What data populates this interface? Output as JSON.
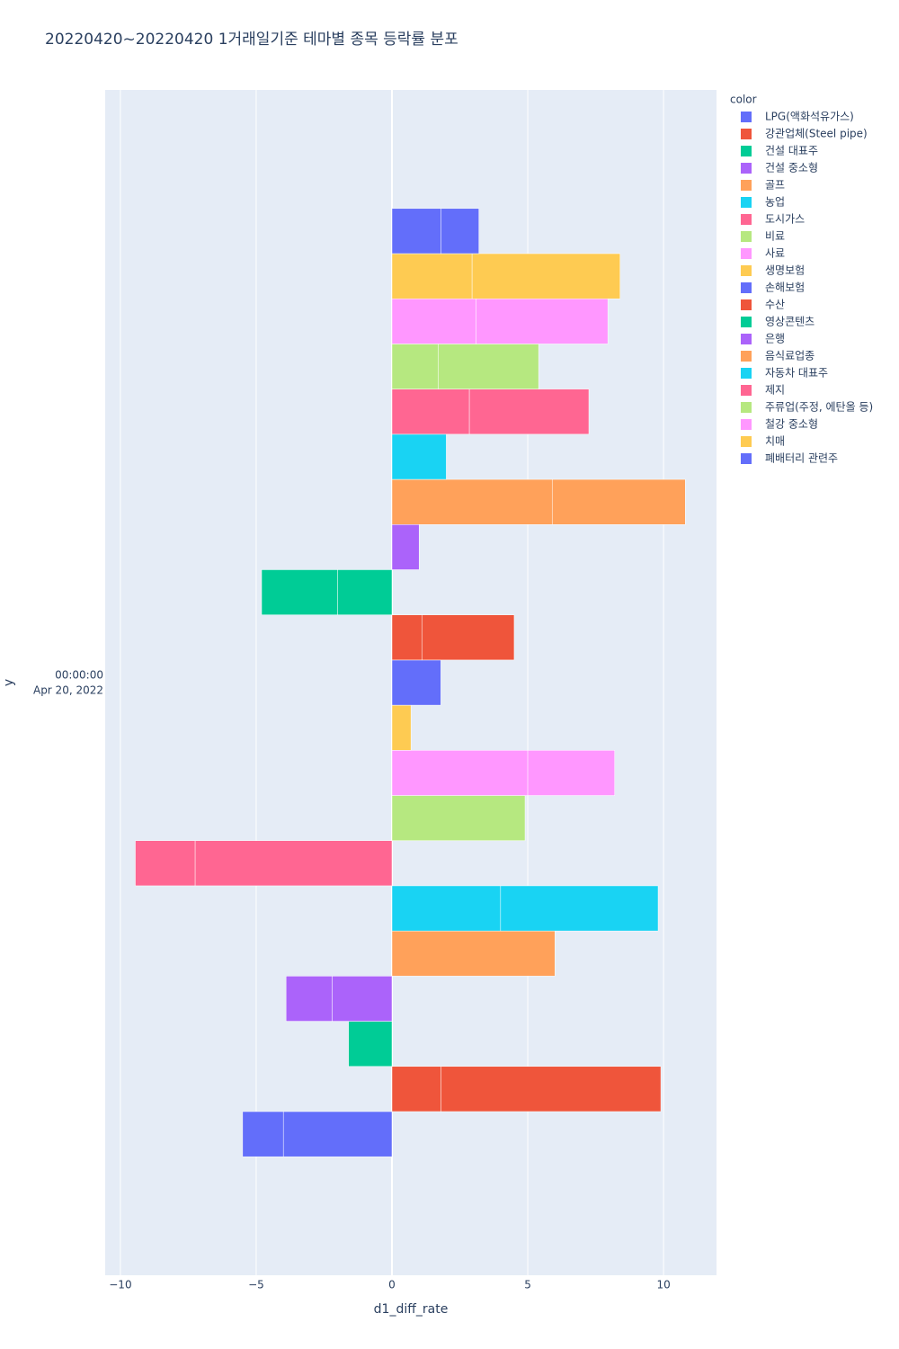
{
  "chart_data": {
    "type": "bar",
    "orientation": "h",
    "barmode": "relative",
    "title": "20220420~20220420 1거래일기준 테마별 종목 등락률 분포",
    "x_label": "d1_diff_rate",
    "y_label": "y",
    "legend_title": "color",
    "y_tick_label": [
      "00:00:00",
      "Apr 20, 2022"
    ],
    "xlim": [
      -10.56,
      11.95
    ],
    "xticks": [
      {
        "value": -10,
        "label": "−10"
      },
      {
        "value": -5,
        "label": "−5"
      },
      0,
      5,
      10
    ],
    "grid": true,
    "legend": "right",
    "series": [
      {
        "name": "LPG(액화석유가스)",
        "color": "#636efa",
        "values": [
          -4.0,
          -1.5
        ]
      },
      {
        "name": "강관업체(Steel pipe)",
        "color": "#EF553B",
        "values": [
          1.8,
          8.1
        ]
      },
      {
        "name": "건설 대표주",
        "color": "#00cc96",
        "values": [
          -1.6
        ]
      },
      {
        "name": "건설 중소형",
        "color": "#ab63fa",
        "values": [
          -2.2,
          -1.7
        ]
      },
      {
        "name": "골프",
        "color": "#FFA15A",
        "values": [
          6.0
        ]
      },
      {
        "name": "농업",
        "color": "#19d3f3",
        "values": [
          4.0,
          5.8
        ]
      },
      {
        "name": "도시가스",
        "color": "#FF6692",
        "values": [
          -7.25,
          -2.2
        ]
      },
      {
        "name": "비료",
        "color": "#B6E880",
        "values": [
          4.9
        ]
      },
      {
        "name": "사료",
        "color": "#FF97FF",
        "values": [
          5.0,
          3.2
        ]
      },
      {
        "name": "생명보험",
        "color": "#FECB52",
        "values": [
          0.7
        ]
      },
      {
        "name": "손해보험",
        "color": "#636efa",
        "values": [
          1.8
        ]
      },
      {
        "name": "수산",
        "color": "#EF553B",
        "values": [
          1.1,
          3.4
        ]
      },
      {
        "name": "영상콘텐츠",
        "color": "#00cc96",
        "values": [
          -2.0,
          -2.8
        ]
      },
      {
        "name": "은행",
        "color": "#ab63fa",
        "values": [
          1.0
        ]
      },
      {
        "name": "음식료업종",
        "color": "#FFA15A",
        "values": [
          5.9,
          4.9
        ]
      },
      {
        "name": "자동차 대표주",
        "color": "#19d3f3",
        "values": [
          2.0
        ]
      },
      {
        "name": "제지",
        "color": "#FF6692",
        "values": [
          2.85,
          4.4
        ]
      },
      {
        "name": "주류업(주정, 에탄올 등)",
        "color": "#B6E880",
        "values": [
          1.7,
          3.7
        ]
      },
      {
        "name": "철강 중소형",
        "color": "#FF97FF",
        "values": [
          3.1,
          4.85
        ]
      },
      {
        "name": "치매",
        "color": "#FECB52",
        "values": [
          2.95,
          5.45
        ]
      },
      {
        "name": "폐배터리 관련주",
        "color": "#636efa",
        "values": [
          1.8,
          1.4
        ]
      }
    ]
  }
}
